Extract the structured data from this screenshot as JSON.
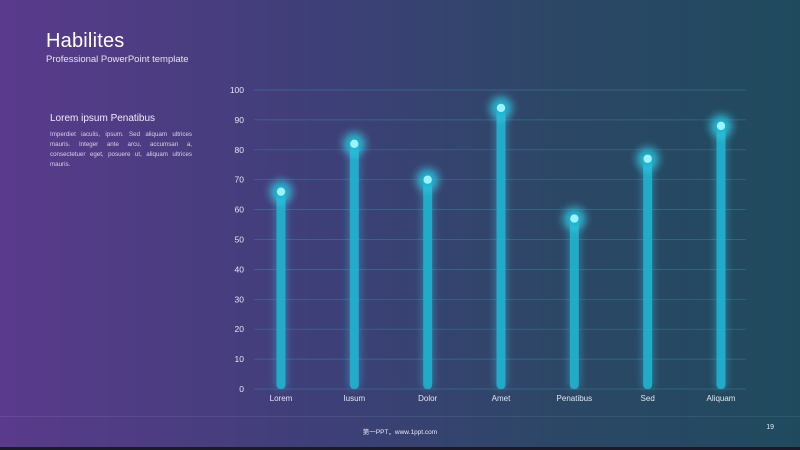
{
  "header": {
    "title": "Habilites",
    "subtitle": "Professional  PowerPoint  template"
  },
  "side_panel": {
    "title": "Lorem ipsum Penatibus",
    "text": "Imperdiet iaculis, ipsum. Sed aliquam ultrices mauris. Integer ante arcu, accumsan a, consectetuer eget, posuere ut, aliquam ultrices mauris."
  },
  "footer": {
    "text": "第一PPT，www.1ppt.com",
    "page_number": "19"
  },
  "colors": {
    "bar": "#1fb3cf",
    "glow": "#3fd6ee",
    "dot": "#9ef2ff",
    "grid": "#3e8fa8",
    "label": "#e4e6f2"
  },
  "chart_data": {
    "type": "bar",
    "title": "",
    "xlabel": "",
    "ylabel": "",
    "categories": [
      "Lorem",
      "Iusum",
      "Dolor",
      "Amet",
      "Penatibus",
      "Sed",
      "Aliquam"
    ],
    "values": [
      66,
      82,
      70,
      94,
      57,
      77,
      88
    ],
    "ylim": [
      0,
      100
    ],
    "yticks": [
      0,
      10,
      20,
      30,
      40,
      50,
      60,
      70,
      80,
      90,
      100
    ],
    "grid": true,
    "legend": "none"
  }
}
